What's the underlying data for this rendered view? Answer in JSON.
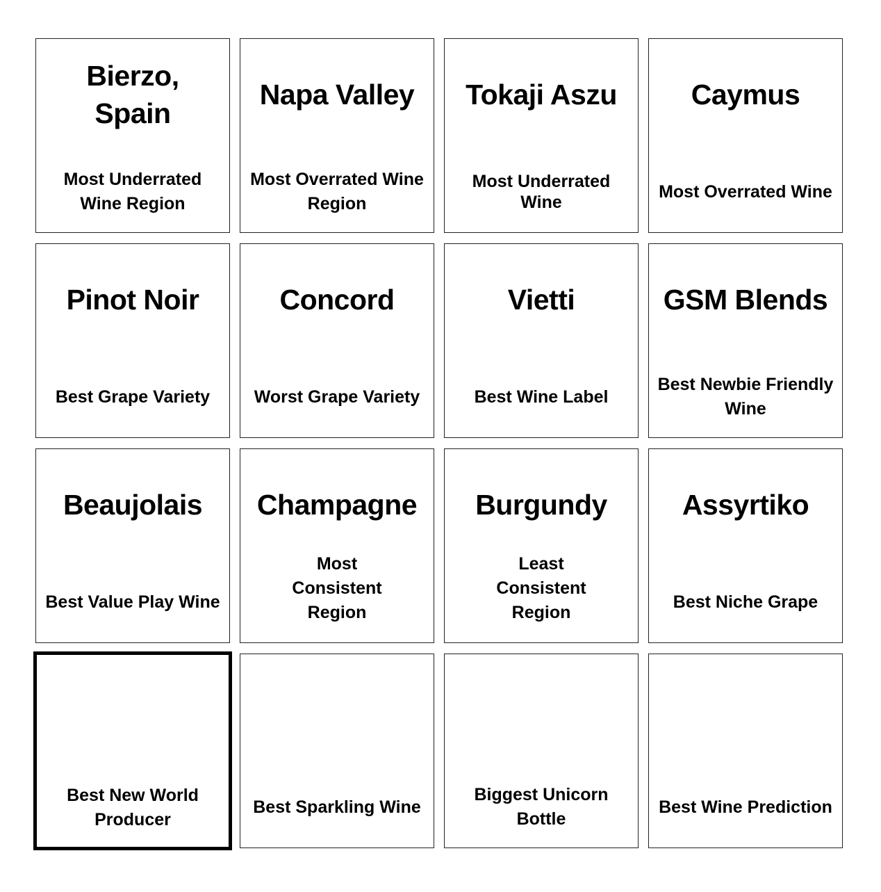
{
  "cells": [
    {
      "title": "Bierzo, Spain",
      "label": "Most Underrated Wine Region"
    },
    {
      "title": "Napa Valley",
      "label": "Most Overrated Wine Region"
    },
    {
      "title": "Tokaji Aszu",
      "label": "Most Underrated Wine"
    },
    {
      "title": "Caymus",
      "label": "Most Overrated Wine"
    },
    {
      "title": "Pinot Noir",
      "label": "Best Grape Variety"
    },
    {
      "title": "Concord",
      "label": "Worst Grape Variety"
    },
    {
      "title": "Vietti",
      "label": "Best Wine Label"
    },
    {
      "title": "GSM Blends",
      "label": "Best Newbie Friendly Wine"
    },
    {
      "title": "Beaujolais",
      "label": "Best Value Play Wine"
    },
    {
      "title": "Champagne",
      "label": "Most Consistent Region"
    },
    {
      "title": "Burgundy",
      "label": "Least Consistent Region"
    },
    {
      "title": "Assyrtiko",
      "label": "Best Niche Grape"
    },
    {
      "title": "",
      "label": "Best New World Producer",
      "selected": true
    },
    {
      "title": "",
      "label": "Best Sparkling Wine"
    },
    {
      "title": "",
      "label": "Biggest Unicorn Bottle"
    },
    {
      "title": "",
      "label": "Best Wine Prediction"
    }
  ]
}
